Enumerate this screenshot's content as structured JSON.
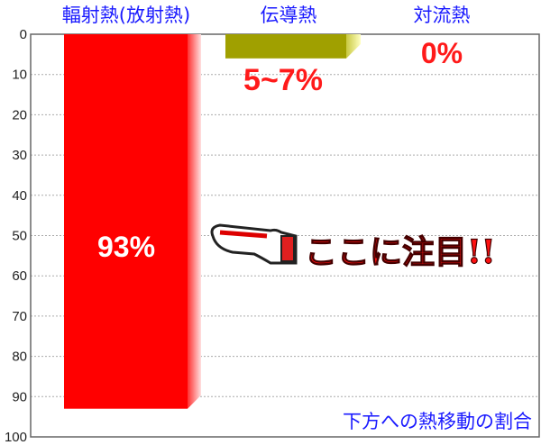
{
  "chart_data": {
    "type": "bar",
    "orientation": "vertical-inverted",
    "categories": [
      "輻射熱(放射熱)",
      "伝導熱",
      "対流熱"
    ],
    "values": [
      93,
      6,
      0
    ],
    "data_labels": [
      "93%",
      "5~7%",
      "0%"
    ],
    "colors": [
      "#ff0000",
      "#a0a000",
      "#ffffff"
    ],
    "ylim": [
      0,
      100
    ],
    "yticks": [
      0,
      10,
      20,
      30,
      40,
      50,
      60,
      70,
      80,
      90,
      100
    ],
    "grid": true,
    "caption": "下方への熱移動の割合",
    "annotation": "ここに注目!!",
    "annotation_icon": "pointing-hand-icon"
  }
}
